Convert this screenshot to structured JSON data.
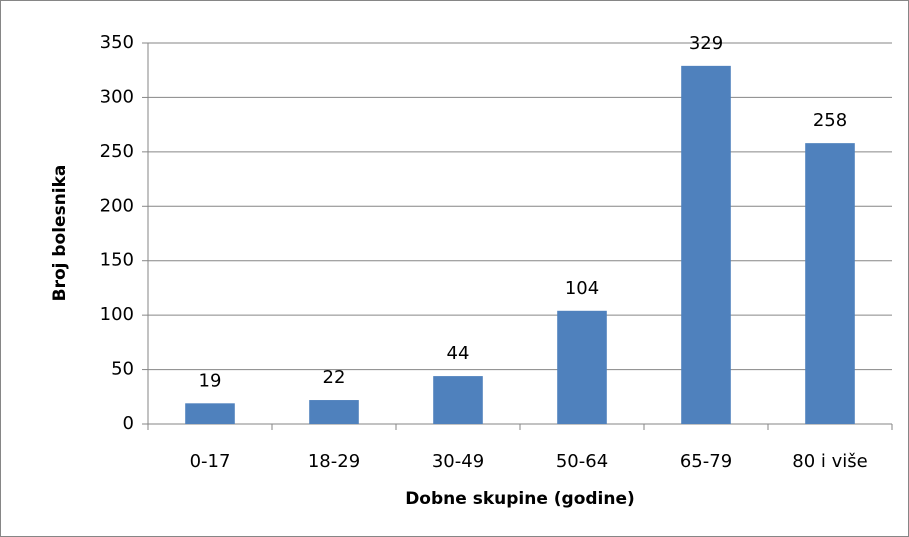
{
  "chart_data": {
    "type": "bar",
    "xlabel": "Dobne skupine (godine)",
    "ylabel": "Broj bolesnika",
    "categories": [
      "0-17",
      "18-29",
      "30-49",
      "50-64",
      "65-79",
      "80 i više"
    ],
    "values": [
      19,
      22,
      44,
      104,
      329,
      258
    ],
    "color": "#4f81bd",
    "ylim": [
      0,
      350
    ],
    "yticks": [
      0,
      50,
      100,
      150,
      200,
      250,
      300,
      350
    ],
    "grid": true,
    "data_labels": true
  }
}
